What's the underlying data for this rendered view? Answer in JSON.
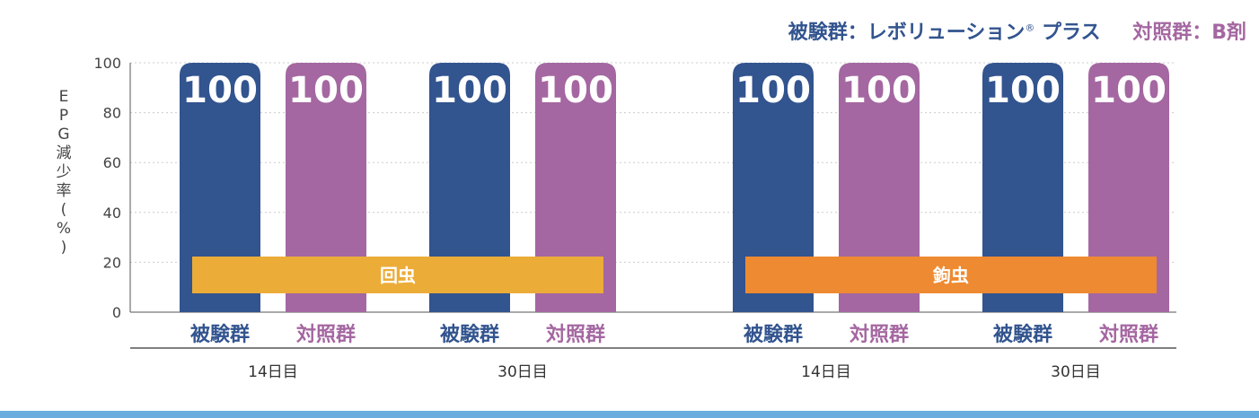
{
  "legend": {
    "test_label": "被験群：レボリューション",
    "test_mark": "®",
    "test_suffix": " プラス",
    "control_label": "対照群：B剤"
  },
  "colors": {
    "test": "#32548f",
    "control": "#a467a1",
    "roundworm": "#ecac38",
    "hookworm": "#ee8a31",
    "axis": "#555555",
    "grid": "#cccccc",
    "strip": "#6aaee0"
  },
  "chart_data": {
    "type": "bar",
    "ylabel": "EPG減少率（%）",
    "ylim": [
      0,
      100
    ],
    "yticks": [
      0,
      20,
      40,
      60,
      80,
      100
    ],
    "grid": true,
    "legend_position": "top-right",
    "groups": [
      {
        "parasite": "回虫",
        "day": "14日目",
        "bars": [
          {
            "label": "被験群",
            "series": "test",
            "value": 100
          },
          {
            "label": "対照群",
            "series": "control",
            "value": 100
          }
        ]
      },
      {
        "parasite": "回虫",
        "day": "30日目",
        "bars": [
          {
            "label": "被験群",
            "series": "test",
            "value": 100
          },
          {
            "label": "対照群",
            "series": "control",
            "value": 100
          }
        ]
      },
      {
        "parasite": "鉤虫",
        "day": "14日目",
        "bars": [
          {
            "label": "被験群",
            "series": "test",
            "value": 100
          },
          {
            "label": "対照群",
            "series": "control",
            "value": 100
          }
        ]
      },
      {
        "parasite": "鉤虫",
        "day": "30日目",
        "bars": [
          {
            "label": "被験群",
            "series": "test",
            "value": 100
          },
          {
            "label": "対照群",
            "series": "control",
            "value": 100
          }
        ]
      }
    ],
    "parasite_bands": [
      {
        "label": "回虫",
        "color_key": "roundworm",
        "groups": [
          0,
          1
        ]
      },
      {
        "label": "鉤虫",
        "color_key": "hookworm",
        "groups": [
          2,
          3
        ]
      }
    ]
  }
}
